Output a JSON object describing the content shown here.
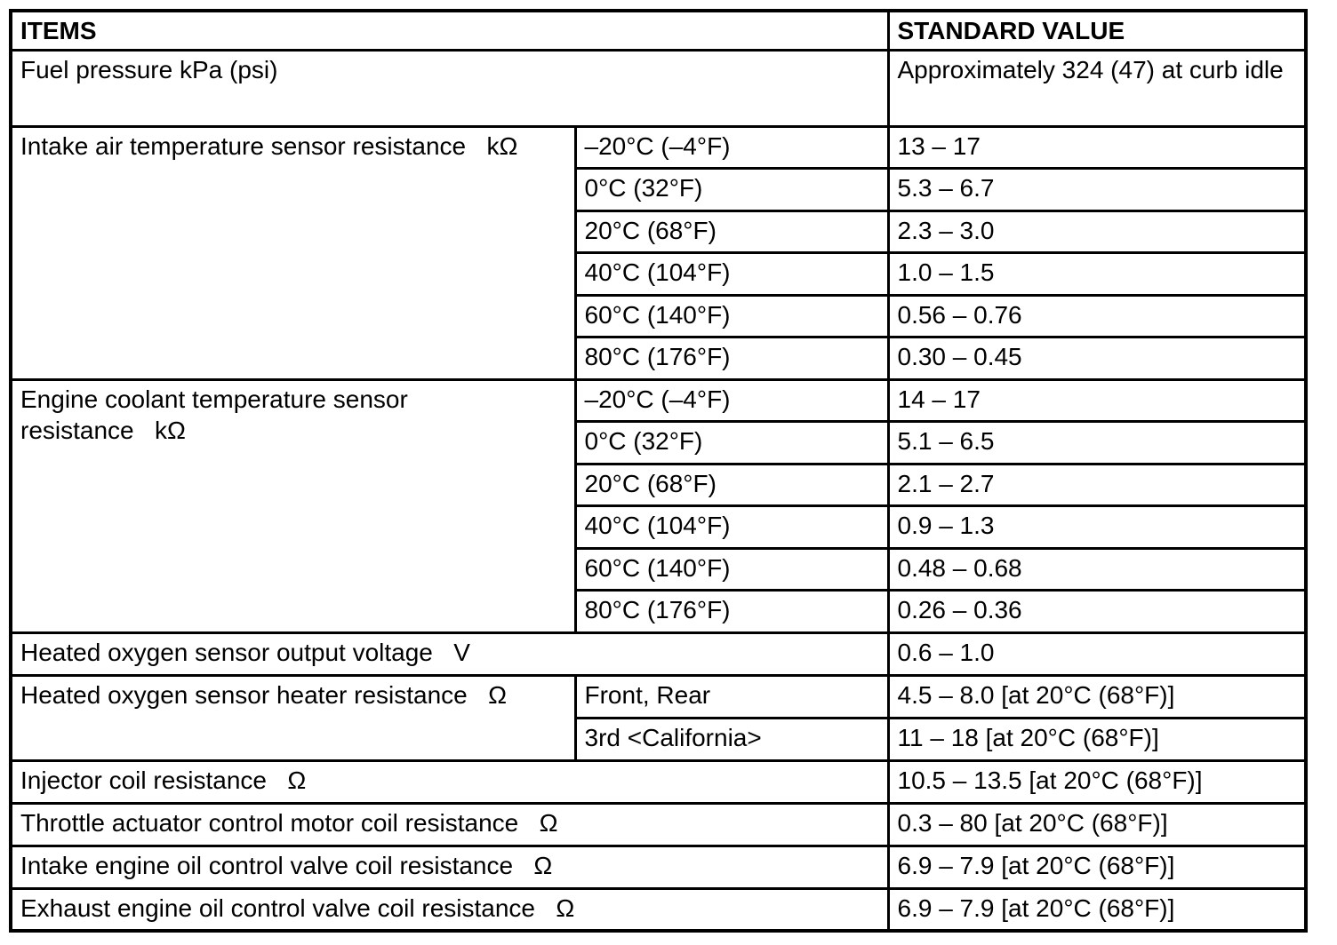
{
  "header": {
    "items": "ITEMS",
    "standard_value": "STANDARD VALUE"
  },
  "rows": {
    "fuel_pressure": {
      "item": "Fuel pressure kPa (psi)",
      "value": "Approximately 324 (47) at curb idle"
    },
    "intake_air_temp": {
      "item": "Intake air temperature sensor resistance   kΩ",
      "conditions": [
        {
          "condition": "–20°C (–4°F)",
          "value": "13 – 17"
        },
        {
          "condition": "0°C (32°F)",
          "value": "5.3 – 6.7"
        },
        {
          "condition": "20°C (68°F)",
          "value": "2.3 – 3.0"
        },
        {
          "condition": "40°C (104°F)",
          "value": "1.0 – 1.5"
        },
        {
          "condition": "60°C (140°F)",
          "value": "0.56 – 0.76"
        },
        {
          "condition": "80°C (176°F)",
          "value": "0.30 – 0.45"
        }
      ]
    },
    "engine_coolant_temp": {
      "item": "Engine coolant temperature sensor resistance   kΩ",
      "conditions": [
        {
          "condition": "–20°C (–4°F)",
          "value": "14 – 17"
        },
        {
          "condition": "0°C (32°F)",
          "value": "5.1 – 6.5"
        },
        {
          "condition": "20°C (68°F)",
          "value": "2.1 – 2.7"
        },
        {
          "condition": "40°C (104°F)",
          "value": "0.9 – 1.3"
        },
        {
          "condition": "60°C (140°F)",
          "value": "0.48 – 0.68"
        },
        {
          "condition": "80°C (176°F)",
          "value": "0.26 – 0.36"
        }
      ]
    },
    "o2_output_voltage": {
      "item": "Heated oxygen sensor output voltage   V",
      "value": "0.6 – 1.0"
    },
    "o2_heater_resistance": {
      "item": "Heated oxygen sensor heater resistance   Ω",
      "conditions": [
        {
          "condition": "Front, Rear",
          "value": "4.5 – 8.0 [at 20°C (68°F)]"
        },
        {
          "condition": "3rd <California>",
          "value": "11 – 18 [at 20°C (68°F)]"
        }
      ]
    },
    "injector_coil": {
      "item": "Injector coil resistance   Ω",
      "value": "10.5 – 13.5 [at 20°C (68°F)]"
    },
    "throttle_motor_coil": {
      "item": "Throttle actuator control motor coil resistance   Ω",
      "value": "0.3 – 80 [at 20°C (68°F)]"
    },
    "intake_oil_valve_coil": {
      "item": "Intake engine oil control valve coil resistance   Ω",
      "value": "6.9 – 7.9 [at 20°C (68°F)]"
    },
    "exhaust_oil_valve_coil": {
      "item": "Exhaust engine oil control valve coil resistance   Ω",
      "value": "6.9 – 7.9 [at 20°C (68°F)]"
    }
  }
}
